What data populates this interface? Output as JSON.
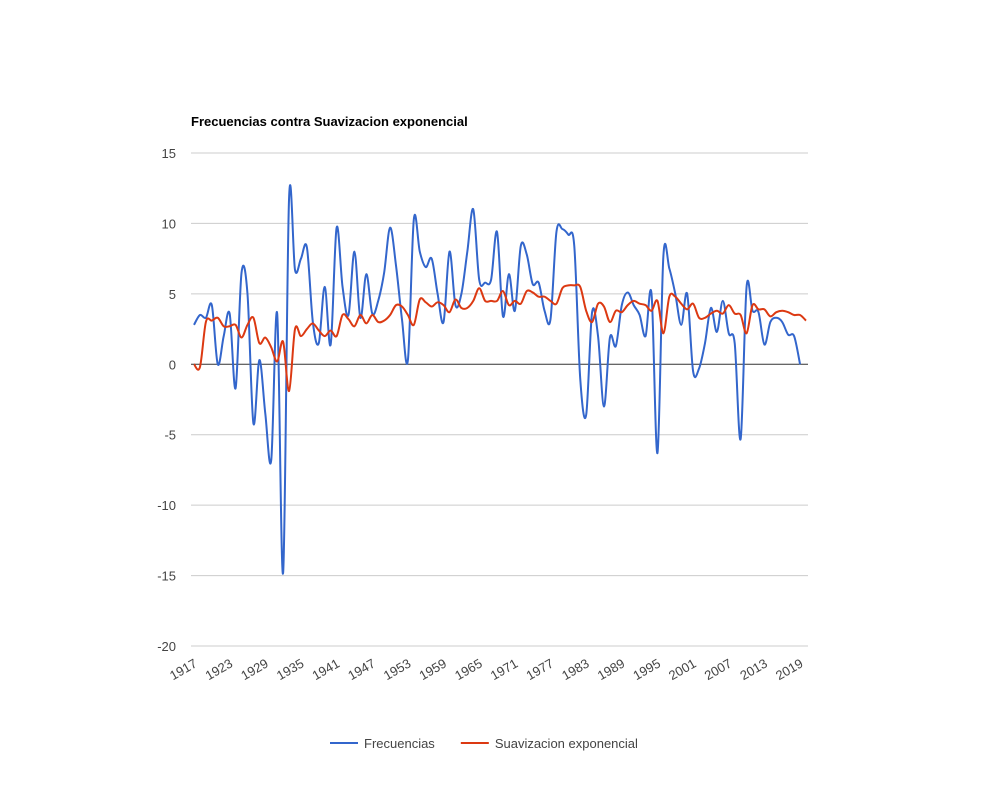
{
  "chart_data": {
    "type": "line",
    "title": "Frecuencias contra Suavizacion exponencial",
    "x": [
      1917,
      1918,
      1919,
      1920,
      1921,
      1922,
      1923,
      1924,
      1925,
      1926,
      1927,
      1928,
      1929,
      1930,
      1931,
      1932,
      1933,
      1934,
      1935,
      1936,
      1937,
      1938,
      1939,
      1940,
      1941,
      1942,
      1943,
      1944,
      1945,
      1946,
      1947,
      1948,
      1949,
      1950,
      1951,
      1952,
      1953,
      1954,
      1955,
      1956,
      1957,
      1958,
      1959,
      1960,
      1961,
      1962,
      1963,
      1964,
      1965,
      1966,
      1967,
      1968,
      1969,
      1970,
      1971,
      1972,
      1973,
      1974,
      1975,
      1976,
      1977,
      1978,
      1979,
      1980,
      1981,
      1982,
      1983,
      1984,
      1985,
      1986,
      1987,
      1988,
      1989,
      1990,
      1991,
      1992,
      1993,
      1994,
      1995,
      1996,
      1997,
      1998,
      1999,
      2000,
      2001,
      2002,
      2003,
      2004,
      2005,
      2006,
      2007,
      2008,
      2009,
      2010,
      2011,
      2012,
      2013,
      2014,
      2015,
      2016,
      2017,
      2018,
      2019,
      2020
    ],
    "series": [
      {
        "name": "Frecuencias",
        "color": "#3366cc",
        "values": [
          2.8,
          3.5,
          3.3,
          4.2,
          0,
          2.0,
          3.6,
          -1.7,
          6.5,
          5.0,
          -4.2,
          0.3,
          -3.5,
          -6.8,
          3.6,
          -14.8,
          11.8,
          6.7,
          7.5,
          8.3,
          3.0,
          1.5,
          5.5,
          1.4,
          9.7,
          5.5,
          3.5,
          8.0,
          3.3,
          6.4,
          3.6,
          4.5,
          6.5,
          9.7,
          7.0,
          3.2,
          0.3,
          10.3,
          8.0,
          6.9,
          7.5,
          5.0,
          3.0,
          8.0,
          4.2,
          5.0,
          8.0,
          11.0,
          6.0,
          5.8,
          6.0,
          9.4,
          3.4,
          6.4,
          3.8,
          8.4,
          7.8,
          5.7,
          5.8,
          3.8,
          3.2,
          9.4,
          9.6,
          9.2,
          8.4,
          -1.0,
          -3.6,
          3.7,
          2.0,
          -3.0,
          1.9,
          1.3,
          4.2,
          5.1,
          4.2,
          3.5,
          2.0,
          5.0,
          -6.3,
          7.7,
          6.8,
          5.0,
          2.8,
          5.0,
          -0.5,
          -0.3,
          1.5,
          4.0,
          2.3,
          4.5,
          2.2,
          1.5,
          -5.3,
          5.5,
          3.8,
          3.7,
          1.4,
          3.0,
          3.3,
          3.0,
          2.1,
          2.0,
          0,
          null
        ]
      },
      {
        "name": "Suavizacion exponencial",
        "color": "#dc3912",
        "values": [
          0,
          -0.2,
          3.0,
          3.1,
          3.3,
          2.7,
          2.7,
          2.8,
          1.9,
          2.8,
          3.3,
          1.5,
          1.9,
          1.2,
          0.2,
          1.6,
          -1.9,
          2.5,
          2.0,
          2.5,
          2.9,
          2.4,
          2.0,
          2.4,
          2.0,
          3.5,
          3.2,
          2.7,
          3.5,
          2.9,
          3.5,
          3.0,
          3.1,
          3.5,
          4.2,
          4.1,
          3.5,
          2.8,
          4.6,
          4.4,
          4.1,
          4.4,
          4.2,
          3.7,
          4.6,
          4.0,
          4.0,
          4.5,
          5.4,
          4.5,
          4.5,
          4.5,
          5.2,
          4.2,
          4.5,
          4.3,
          5.2,
          5.1,
          4.8,
          4.8,
          4.5,
          4.3,
          5.4,
          5.6,
          5.6,
          5.5,
          3.8,
          3.0,
          4.3,
          4.1,
          3.0,
          3.8,
          3.7,
          4.2,
          4.5,
          4.3,
          4.2,
          3.8,
          4.5,
          2.2,
          4.8,
          4.8,
          4.3,
          3.9,
          4.3,
          3.3,
          3.3,
          3.6,
          3.8,
          3.6,
          4.2,
          3.6,
          3.5,
          2.2,
          4.2,
          3.9,
          3.9,
          3.4,
          3.7,
          3.8,
          3.7,
          3.5,
          3.5,
          3.1
        ]
      }
    ],
    "xlim": [
      1917,
      2020
    ],
    "xticks": [
      1917,
      1923,
      1929,
      1935,
      1941,
      1947,
      1953,
      1959,
      1965,
      1971,
      1977,
      1983,
      1989,
      1995,
      2001,
      2007,
      2013,
      2019
    ],
    "ylim": [
      -20,
      15
    ],
    "yticks": [
      -20,
      -15,
      -10,
      -5,
      0,
      5,
      10,
      15
    ],
    "grid": true,
    "legend": "bottom"
  }
}
